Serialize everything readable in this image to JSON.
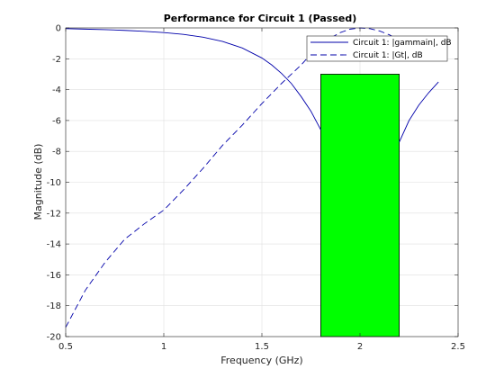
{
  "chart_data": {
    "type": "line",
    "title": "Performance for Circuit 1 (Passed)",
    "xlabel": "Frequency (GHz)",
    "ylabel": "Magnitude (dB)",
    "xlim": [
      0.5,
      2.5
    ],
    "ylim": [
      -20,
      0
    ],
    "xticks": [
      0.5,
      1,
      1.5,
      2,
      2.5
    ],
    "xtick_labels": [
      "0.5",
      "1",
      "1.5",
      "2",
      "2.5"
    ],
    "yticks": [
      0,
      -2,
      -4,
      -6,
      -8,
      -10,
      -12,
      -14,
      -16,
      -18,
      -20
    ],
    "ytick_labels": [
      "0",
      "-2",
      "-4",
      "-6",
      "-8",
      "-10",
      "-12",
      "-14",
      "-16",
      "-18",
      "-20"
    ],
    "grid": true,
    "legend_position": "top-right",
    "series": [
      {
        "name": "Circuit 1: |gammain|, dB",
        "style": "solid",
        "color": "#0000aa",
        "x": [
          0.5,
          0.6,
          0.7,
          0.8,
          0.9,
          1.0,
          1.1,
          1.2,
          1.3,
          1.4,
          1.5,
          1.55,
          1.6,
          1.65,
          1.7,
          1.75,
          1.8,
          null,
          2.2,
          2.25,
          2.3,
          2.35,
          2.4
        ],
        "values": [
          -0.05,
          -0.08,
          -0.11,
          -0.16,
          -0.22,
          -0.3,
          -0.42,
          -0.6,
          -0.88,
          -1.3,
          -1.95,
          -2.4,
          -2.95,
          -3.6,
          -4.45,
          -5.4,
          -6.6,
          null,
          -7.4,
          -6.0,
          -5.0,
          -4.2,
          -3.5
        ]
      },
      {
        "name": "Circuit 1: |Gt|, dB",
        "style": "dashed",
        "color": "#0000aa",
        "x": [
          0.5,
          0.6,
          0.7,
          0.8,
          0.9,
          1.0,
          1.1,
          1.2,
          1.3,
          1.4,
          1.5,
          1.6,
          1.7,
          1.75,
          1.8,
          1.85,
          1.9,
          1.95,
          2.0,
          2.05,
          2.1,
          2.15,
          2.2
        ],
        "values": [
          -19.4,
          -17.0,
          -15.2,
          -13.7,
          -12.7,
          -11.8,
          -10.5,
          -9.1,
          -7.6,
          -6.3,
          -4.9,
          -3.6,
          -2.4,
          -1.7,
          -1.1,
          -0.65,
          -0.3,
          -0.08,
          0.0,
          -0.05,
          -0.2,
          -0.45,
          -0.8
        ]
      }
    ],
    "spec_region": {
      "x": [
        1.8,
        2.2
      ],
      "y": [
        -20,
        -3
      ],
      "color": "#00ff00"
    }
  }
}
